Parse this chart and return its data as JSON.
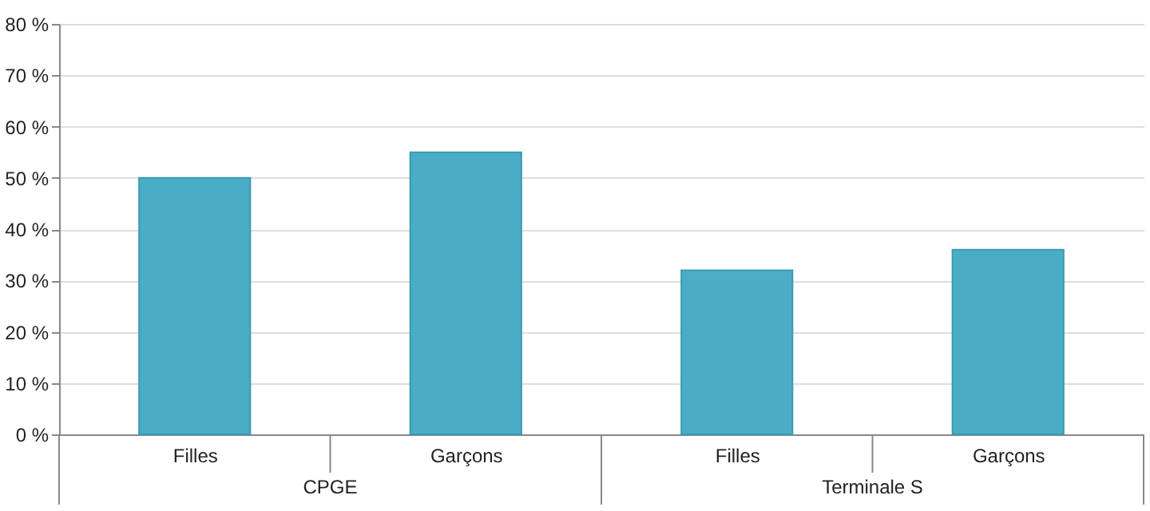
{
  "chart_data": {
    "type": "bar",
    "categories": [
      "Filles",
      "Garçons",
      "Filles",
      "Garçons"
    ],
    "values": [
      50,
      55,
      32,
      36
    ],
    "color": "#4bacc6",
    "annotations": [
      "CPGE",
      "Terminale S"
    ],
    "ylim": [
      0,
      80
    ],
    "yticks": [
      {
        "value": 0,
        "label": "0 %"
      },
      {
        "value": 10,
        "label": "10 %"
      },
      {
        "value": 20,
        "label": "20 %"
      },
      {
        "value": 30,
        "label": "30 %"
      },
      {
        "value": 40,
        "label": "40 %"
      },
      {
        "value": 50,
        "label": "50 %"
      },
      {
        "value": 60,
        "label": "60 %"
      },
      {
        "value": 70,
        "label": "70 %"
      },
      {
        "value": 80,
        "label": "80 %"
      }
    ],
    "grid": "y"
  }
}
